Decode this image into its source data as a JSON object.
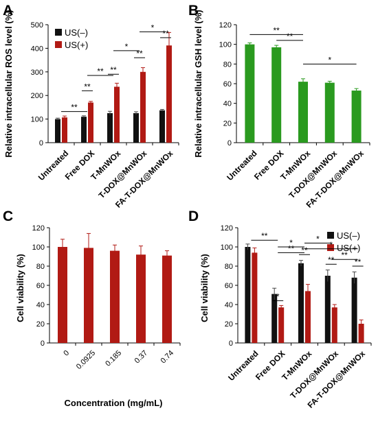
{
  "panels": [
    {
      "letter": "A",
      "chart_data": {
        "type": "bar",
        "ylabel": "Relative intracellular ROS level (%)",
        "xlabel": "",
        "ylim": [
          0,
          500
        ],
        "yticks": [
          0,
          100,
          200,
          300,
          400,
          500
        ],
        "categories": [
          "Untreated",
          "Free DOX",
          "T-MnWOx",
          "T-DOX@MnWOx",
          "FA-T-DOX@MnWOx"
        ],
        "series": [
          {
            "name": "US(–)",
            "color": "#111111",
            "values": [
              100,
              110,
              125,
              125,
              137
            ],
            "errors": [
              4,
              4,
              8,
              6,
              4
            ]
          },
          {
            "name": "US(+)",
            "color": "#b11a14",
            "values": [
              107,
              170,
              237,
              300,
              412
            ],
            "errors": [
              6,
              5,
              15,
              18,
              55
            ]
          }
        ],
        "legend_position": "top-left",
        "significance": [
          {
            "label": "**",
            "from": 0,
            "to": 1
          },
          {
            "label": "**",
            "from": 1,
            "to": 1
          },
          {
            "label": "**",
            "from": 1,
            "to": 2
          },
          {
            "label": "**",
            "from": 2,
            "to": 2
          },
          {
            "label": "*",
            "from": 2,
            "to": 3
          },
          {
            "label": "**",
            "from": 3,
            "to": 3
          },
          {
            "label": "*",
            "from": 3,
            "to": 4
          },
          {
            "label": "**",
            "from": 4,
            "to": 4
          }
        ]
      }
    },
    {
      "letter": "B",
      "chart_data": {
        "type": "bar",
        "ylabel": "Relative intracellular GSH level (%)",
        "xlabel": "",
        "ylim": [
          0,
          120
        ],
        "yticks": [
          0,
          20,
          40,
          60,
          80,
          100,
          120
        ],
        "categories": [
          "Untreated",
          "Free DOX",
          "T-MnWOx",
          "T-DOX@MnWOx",
          "FA-T-DOX@MnWOx"
        ],
        "series": [
          {
            "color": "#2a9a1f",
            "values": [
              100,
              97,
              62,
              61,
              53
            ],
            "errors": [
              1.5,
              2,
              3,
              1.5,
              2
            ]
          }
        ],
        "significance": [
          {
            "label": "**",
            "from": 0,
            "to": 2
          },
          {
            "label": "**",
            "from": 1,
            "to": 2
          },
          {
            "label": "*",
            "from": 2,
            "to": 4
          }
        ]
      }
    },
    {
      "letter": "C",
      "chart_data": {
        "type": "bar",
        "ylabel": "Cell viability (%)",
        "xlabel": "Concentration (mg/mL)",
        "ylim": [
          0,
          120
        ],
        "yticks": [
          0,
          20,
          40,
          60,
          80,
          100,
          120
        ],
        "categories": [
          "0",
          "0.0925",
          "0.185",
          "0.37",
          "0.74"
        ],
        "series": [
          {
            "color": "#b11a14",
            "values": [
              100,
              99,
              96,
              92,
              91
            ],
            "errors": [
              8,
              15,
              6,
              9,
              5
            ]
          }
        ]
      }
    },
    {
      "letter": "D",
      "chart_data": {
        "type": "bar",
        "ylabel": "Cell viability (%)",
        "xlabel": "",
        "ylim": [
          0,
          120
        ],
        "yticks": [
          0,
          20,
          40,
          60,
          80,
          100,
          120
        ],
        "categories": [
          "Untreated",
          "Free DOX",
          "T-MnWOx",
          "T-DOX@MnWOx",
          "FA-T-DOX@MnWOx"
        ],
        "series": [
          {
            "name": "US(–)",
            "color": "#111111",
            "values": [
              100,
              51,
              83,
              70,
              68
            ],
            "errors": [
              3,
              6,
              3,
              6,
              6
            ]
          },
          {
            "name": "US(+)",
            "color": "#b11a14",
            "values": [
              94,
              37,
              54,
              37,
              20
            ],
            "errors": [
              5,
              2,
              7,
              3,
              4
            ]
          }
        ],
        "legend_position": "top-right",
        "significance": [
          {
            "label": "**",
            "from": 0,
            "to": 1
          },
          {
            "label": "*",
            "from": 1,
            "to": 1
          },
          {
            "label": "*",
            "from": 1,
            "to": 2
          },
          {
            "label": "**",
            "from": 1,
            "to": 2
          },
          {
            "label": "**",
            "from": 2,
            "to": 2
          },
          {
            "label": "*",
            "from": 2,
            "to": 3
          },
          {
            "label": "*",
            "from": 2,
            "to": 4
          },
          {
            "label": "**",
            "from": 3,
            "to": 3
          },
          {
            "label": "**",
            "from": 3,
            "to": 4
          },
          {
            "label": "**",
            "from": 4,
            "to": 4
          }
        ]
      }
    }
  ]
}
